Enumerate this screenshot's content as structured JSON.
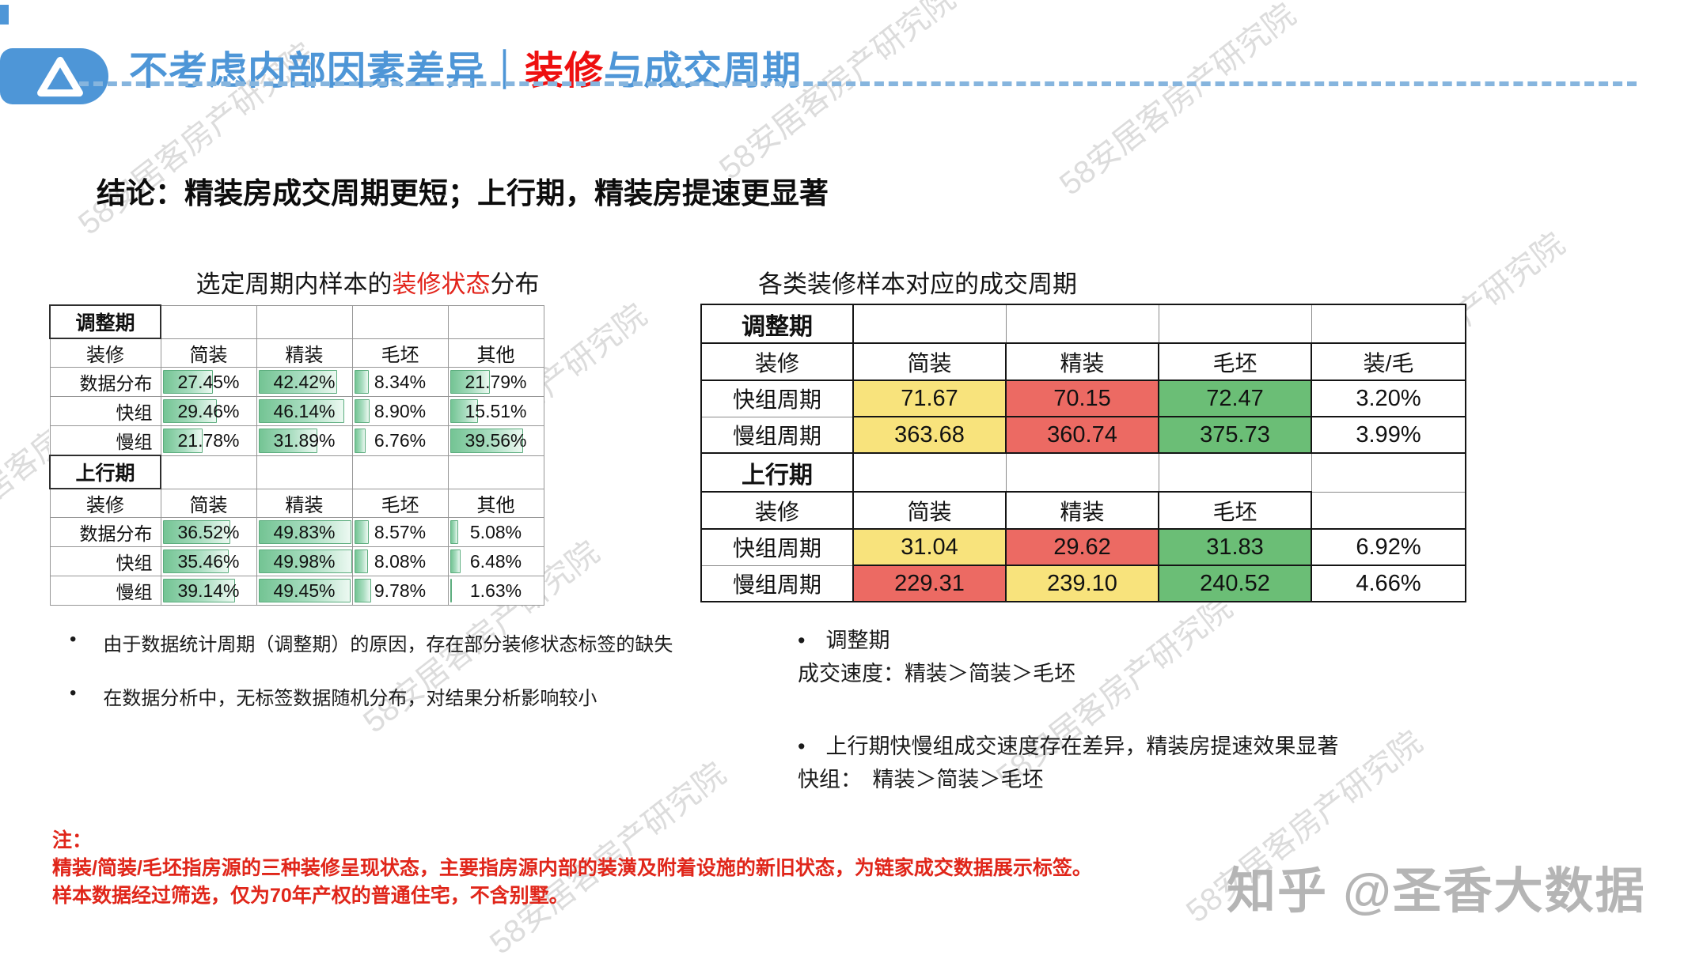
{
  "header": {
    "title_part1": "不考虑内部因素差异｜",
    "title_red": "装修",
    "title_part2": "与成交周期"
  },
  "conclusion": "结论：精装房成交周期更短；上行期，精装房提速更显著",
  "colors": {
    "accent_blue": "#4E96D7",
    "accent_red": "#EE1010",
    "dashed_rule_blue": "#86B5DE",
    "databar_green": "#74C494",
    "cell_yellow": "#F8E37C",
    "cell_red": "#EC6A63",
    "cell_green": "#6BBE76",
    "cell_white": "#FFFFFF",
    "footnote_red": "#E0261A",
    "watermark_gray": "#969696",
    "zhihu_gray": "#B5B5B5"
  },
  "left_table": {
    "title_pre": "选定周期内样本的",
    "title_red": "装修状态",
    "title_post": "分布",
    "bar_scale_max": 50,
    "sections": [
      {
        "period": "调整期",
        "columns": [
          "装修",
          "简装",
          "精装",
          "毛坯",
          "其他"
        ],
        "rows": [
          {
            "label": "数据分布",
            "values": [
              "27.45%",
              "42.42%",
              "8.34%",
              "21.79%"
            ]
          },
          {
            "label": "快组",
            "values": [
              "29.46%",
              "46.14%",
              "8.90%",
              "15.51%"
            ]
          },
          {
            "label": "慢组",
            "values": [
              "21.78%",
              "31.89%",
              "6.76%",
              "39.56%"
            ]
          }
        ]
      },
      {
        "period": "上行期",
        "columns": [
          "装修",
          "简装",
          "精装",
          "毛坯",
          "其他"
        ],
        "rows": [
          {
            "label": "数据分布",
            "values": [
              "36.52%",
              "49.83%",
              "8.57%",
              "5.08%"
            ]
          },
          {
            "label": "快组",
            "values": [
              "35.46%",
              "49.98%",
              "8.08%",
              "6.48%"
            ]
          },
          {
            "label": "慢组",
            "values": [
              "39.14%",
              "49.45%",
              "9.78%",
              "1.63%"
            ]
          }
        ]
      }
    ]
  },
  "right_table": {
    "title": "各类装修样本对应的成交周期",
    "sections": [
      {
        "period": "调整期",
        "columns": [
          "装修",
          "简装",
          "精装",
          "毛坯",
          "装/毛"
        ],
        "rows": [
          {
            "label": "快组周期",
            "cells": [
              {
                "text": "71.67",
                "bg": "cell_yellow"
              },
              {
                "text": "70.15",
                "bg": "cell_red"
              },
              {
                "text": "72.47",
                "bg": "cell_green"
              },
              {
                "text": "3.20%",
                "bg": "cell_white"
              }
            ]
          },
          {
            "label": "慢组周期",
            "cells": [
              {
                "text": "363.68",
                "bg": "cell_yellow"
              },
              {
                "text": "360.74",
                "bg": "cell_red"
              },
              {
                "text": "375.73",
                "bg": "cell_green"
              },
              {
                "text": "3.99%",
                "bg": "cell_white"
              }
            ]
          }
        ]
      },
      {
        "period": "上行期",
        "columns": [
          "装修",
          "简装",
          "精装",
          "毛坯",
          ""
        ],
        "rows": [
          {
            "label": "快组周期",
            "cells": [
              {
                "text": "31.04",
                "bg": "cell_yellow"
              },
              {
                "text": "29.62",
                "bg": "cell_red"
              },
              {
                "text": "31.83",
                "bg": "cell_green"
              },
              {
                "text": "6.92%",
                "bg": "cell_white"
              }
            ]
          },
          {
            "label": "慢组周期",
            "cells": [
              {
                "text": "229.31",
                "bg": "cell_red"
              },
              {
                "text": "239.10",
                "bg": "cell_yellow"
              },
              {
                "text": "240.52",
                "bg": "cell_green"
              },
              {
                "text": "4.66%",
                "bg": "cell_white"
              }
            ]
          }
        ]
      }
    ]
  },
  "notes_left": [
    "由于数据统计周期（调整期）的原因，存在部分装修状态标签的缺失",
    "在数据分析中，无标签数据随机分布，对结果分析影响较小"
  ],
  "notes_right": {
    "bullet1": "调整期",
    "line1": "成交速度：精装＞简装＞毛坯",
    "bullet2": "上行期快慢组成交速度存在差异，精装房提速效果显著",
    "line2": "快组：　精装＞简装＞毛坯"
  },
  "footnote": {
    "label": "注：",
    "line1": "精装/简装/毛坯指房源的三种装修呈现状态，主要指房源内部的装潢及附着设施的新旧状态，为链家成交数据展示标签。",
    "line2": "样本数据经过筛选，仅为70年产权的普通住宅，不含别墅。"
  },
  "watermarks": {
    "diagonal_text": "58安居客房产研究院",
    "zhihu": "知乎 @圣香大数据"
  }
}
